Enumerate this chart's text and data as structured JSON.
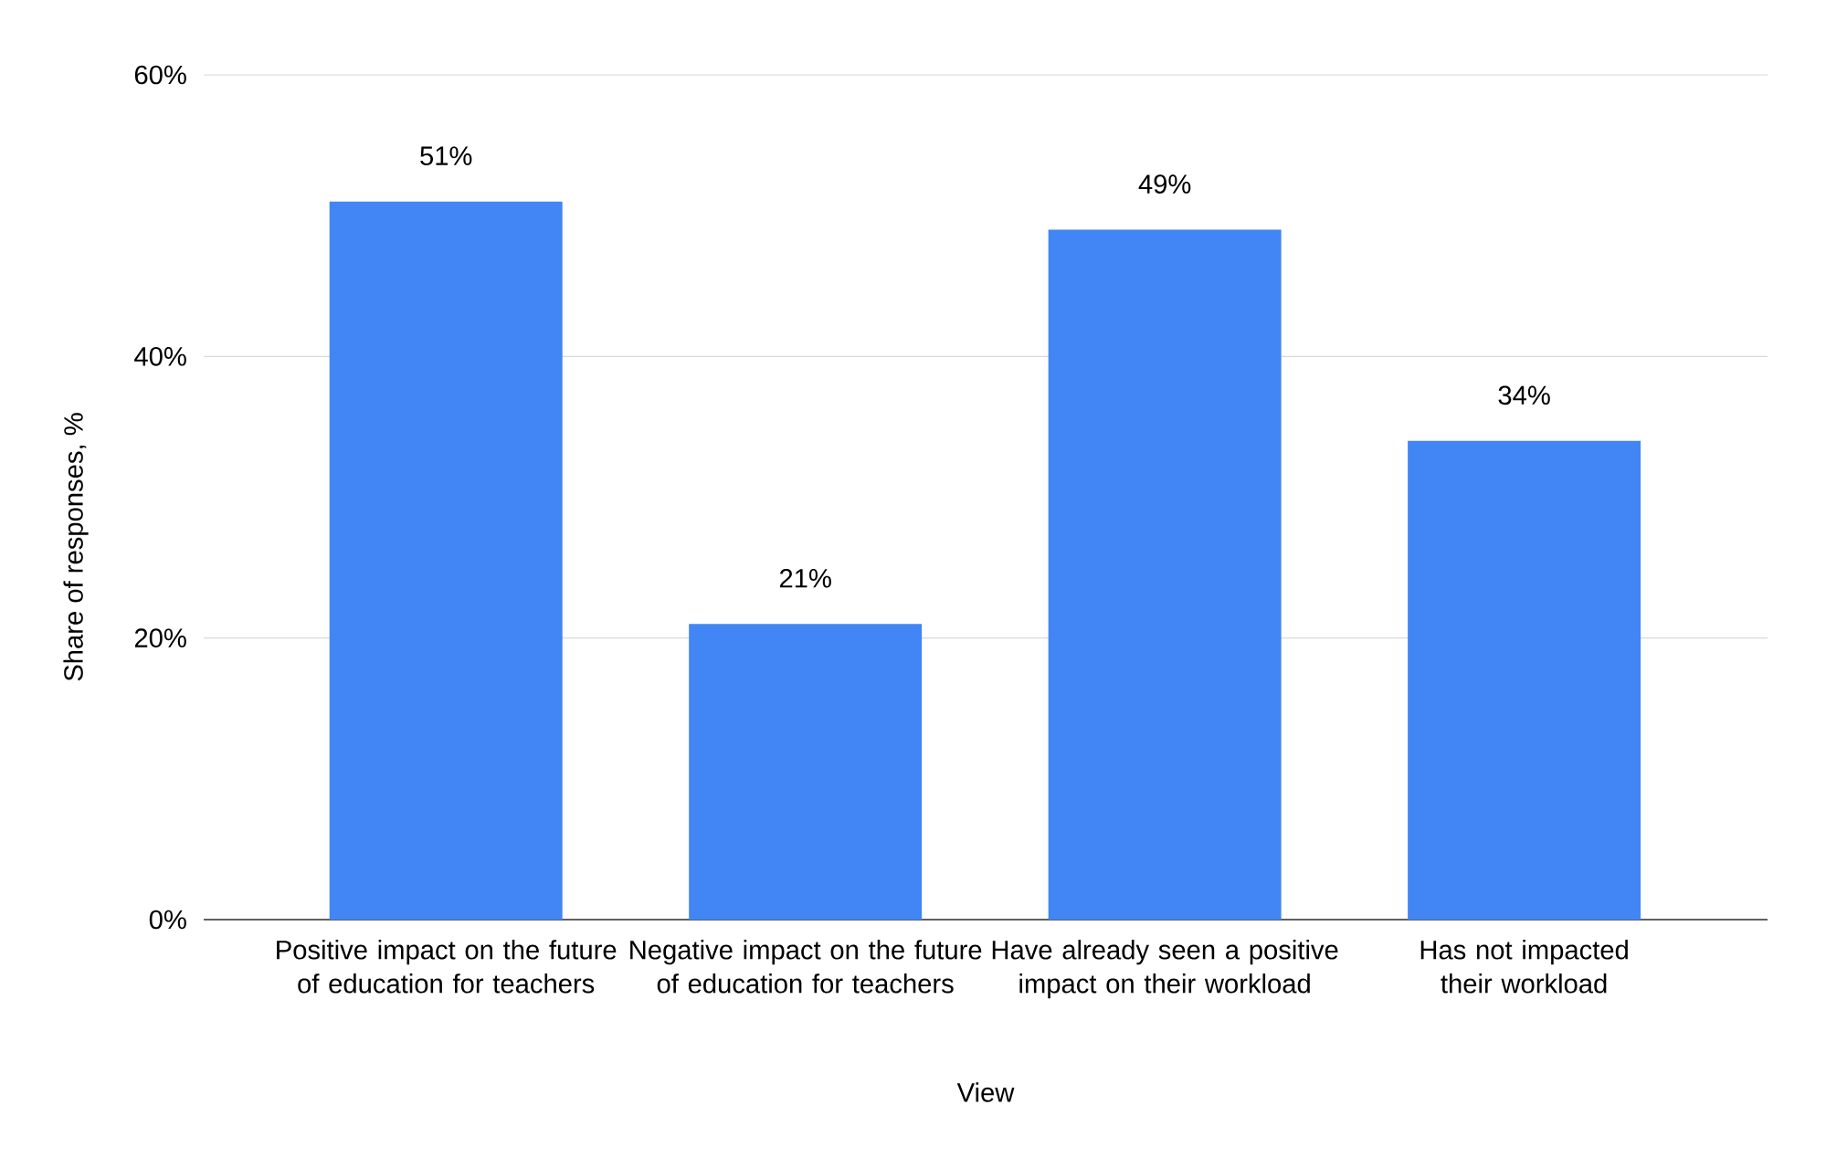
{
  "chart_data": {
    "type": "bar",
    "categories": [
      "Positive impact on the future of education for teachers",
      "Negative impact on the future of education for teachers",
      "Have already seen a positive impact on their workload",
      "Has not impacted their workload"
    ],
    "values": [
      51,
      21,
      49,
      34
    ],
    "value_labels": [
      "51%",
      "21%",
      "49%",
      "34%"
    ],
    "color": "#4285f4",
    "xlabel": "View",
    "ylabel": "Share of responses, %",
    "ylim": [
      0,
      60
    ],
    "yticks": [
      {
        "value": 0,
        "label": "0%"
      },
      {
        "value": 20,
        "label": "20%"
      },
      {
        "value": 40,
        "label": "40%"
      },
      {
        "value": 60,
        "label": "60%"
      }
    ],
    "grid": "y"
  }
}
